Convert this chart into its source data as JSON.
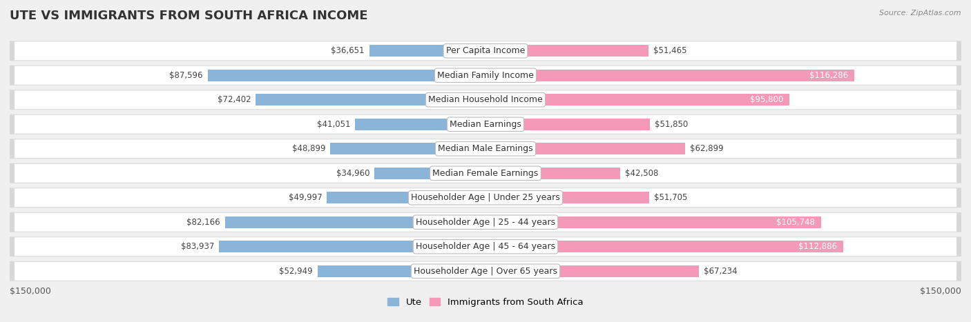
{
  "title": "UTE VS IMMIGRANTS FROM SOUTH AFRICA INCOME",
  "source": "Source: ZipAtlas.com",
  "categories": [
    "Per Capita Income",
    "Median Family Income",
    "Median Household Income",
    "Median Earnings",
    "Median Male Earnings",
    "Median Female Earnings",
    "Householder Age | Under 25 years",
    "Householder Age | 25 - 44 years",
    "Householder Age | 45 - 64 years",
    "Householder Age | Over 65 years"
  ],
  "ute_values": [
    36651,
    87596,
    72402,
    41051,
    48899,
    34960,
    49997,
    82166,
    83937,
    52949
  ],
  "immigrant_values": [
    51465,
    116286,
    95800,
    51850,
    62899,
    42508,
    51705,
    105748,
    112886,
    67234
  ],
  "ute_color": "#8ab4d8",
  "immigrant_color": "#f599b8",
  "max_value": 150000,
  "background_color": "#f0f0f0",
  "legend_ute": "Ute",
  "legend_immigrant": "Immigrants from South Africa",
  "left_axis_label": "$150,000",
  "right_axis_label": "$150,000",
  "title_fontsize": 13,
  "label_fontsize": 9,
  "value_fontsize": 8.5
}
